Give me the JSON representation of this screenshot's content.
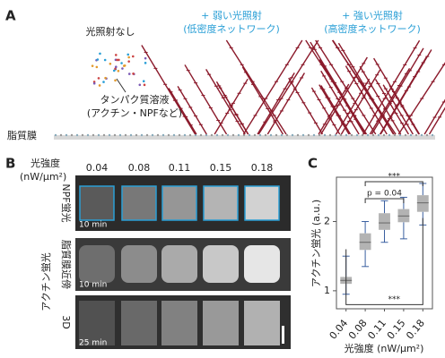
{
  "panel_a": {
    "label": "A",
    "no_light": "光照射なし",
    "weak_light": [
      "+ 弱い光照射",
      "(低密度ネットワーク)"
    ],
    "strong_light": [
      "+ 強い光照射",
      "(高密度ネットワーク)"
    ],
    "solution": [
      "タンパク質溶液",
      "(アクチン・NPFなど)"
    ],
    "membrane": "脂質膜"
  },
  "panel_b": {
    "label": "B",
    "intensity_title": [
      "光強度",
      "(nW/μm²)"
    ],
    "intensities": [
      "0.04",
      "0.08",
      "0.11",
      "0.15",
      "0.18"
    ],
    "row_labels": [
      "NPF蛍光",
      "脂質膜近傍",
      "3D"
    ],
    "group_label": "アクチン蛍光",
    "times": [
      "10 min",
      "10 min",
      "25 min"
    ]
  },
  "chart_data": {
    "type": "box",
    "label": "C",
    "y_label": "アクチン蛍光 (a.u.)",
    "x_label": "光強度 (nW/μm²)",
    "categories": [
      "0.04",
      "0.08",
      "0.11",
      "0.15",
      "0.18"
    ],
    "color": "#b3b3b3",
    "whisker_color": "#3a5fa0",
    "boxes": [
      {
        "whislo": 0.95,
        "q1": 1.1,
        "median": 1.15,
        "q3": 1.2,
        "whishi": 1.5
      },
      {
        "whislo": 1.35,
        "q1": 1.59,
        "median": 1.7,
        "q3": 1.83,
        "whishi": 2.0
      },
      {
        "whislo": 1.7,
        "q1": 1.88,
        "median": 1.98,
        "q3": 2.12,
        "whishi": 2.3
      },
      {
        "whislo": 1.75,
        "q1": 1.99,
        "median": 2.08,
        "q3": 2.18,
        "whishi": 2.35
      },
      {
        "whislo": 1.95,
        "q1": 2.14,
        "median": 2.27,
        "q3": 2.38,
        "whishi": 2.55
      }
    ],
    "ylim": [
      0.74,
      2.64
    ],
    "yticks": [
      1,
      2
    ],
    "annotations": [
      "***",
      "p = 0.04",
      "***"
    ]
  }
}
